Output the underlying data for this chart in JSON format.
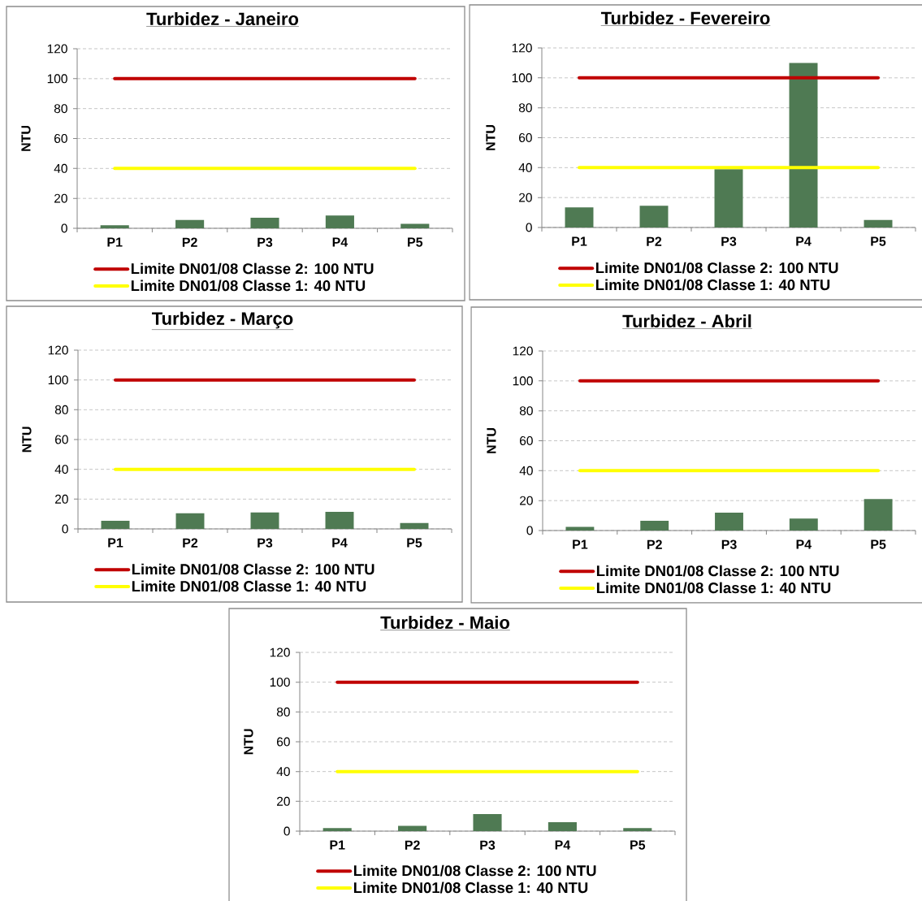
{
  "chart_data": [
    {
      "type": "bar",
      "title": "Turbidez - Janeiro",
      "ylabel": "NTU",
      "categories": [
        "P1",
        "P2",
        "P3",
        "P4",
        "P5"
      ],
      "series": [
        {
          "color": "#4f7a53",
          "values": [
            2,
            5.5,
            7,
            8.5,
            3
          ]
        },
        {
          "type": "line",
          "name": "Limite DN01/08 Classe 2: 100 NTU",
          "color": "#c00000",
          "values": [
            100,
            100,
            100,
            100,
            100
          ]
        },
        {
          "type": "line",
          "name": "Limite DN01/08 Classe 1: 40 NTU",
          "color": "#ffff00",
          "values": [
            40,
            40,
            40,
            40,
            40
          ]
        }
      ],
      "ylim": [
        0,
        120
      ],
      "yticks": [
        0,
        20,
        40,
        60,
        80,
        100,
        120
      ],
      "grid": "y",
      "legend": "bottom"
    },
    {
      "type": "bar",
      "title": "Turbidez - Fevereiro",
      "ylabel": "NTU",
      "categories": [
        "P1",
        "P2",
        "P3",
        "P4",
        "P5"
      ],
      "series": [
        {
          "color": "#4f7a53",
          "values": [
            13.5,
            14.5,
            39,
            110,
            5
          ]
        },
        {
          "type": "line",
          "name": "Limite DN01/08 Classe 2: 100 NTU",
          "color": "#c00000",
          "values": [
            100,
            100,
            100,
            100,
            100
          ]
        },
        {
          "type": "line",
          "name": "Limite DN01/08 Classe 1: 40 NTU",
          "color": "#ffff00",
          "values": [
            40,
            40,
            40,
            40,
            40
          ]
        }
      ],
      "ylim": [
        0,
        120
      ],
      "yticks": [
        0,
        20,
        40,
        60,
        80,
        100,
        120
      ],
      "grid": "y",
      "legend": "bottom"
    },
    {
      "type": "bar",
      "title": "Turbidez - Março",
      "ylabel": "NTU",
      "categories": [
        "P1",
        "P2",
        "P3",
        "P4",
        "P5"
      ],
      "series": [
        {
          "color": "#4f7a53",
          "values": [
            5.5,
            10.5,
            11,
            11.5,
            4
          ]
        },
        {
          "type": "line",
          "name": "Limite DN01/08 Classe 2: 100 NTU",
          "color": "#c00000",
          "values": [
            100,
            100,
            100,
            100,
            100
          ]
        },
        {
          "type": "line",
          "name": "Limite DN01/08 Classe 1: 40 NTU",
          "color": "#ffff00",
          "values": [
            40,
            40,
            40,
            40,
            40
          ]
        }
      ],
      "ylim": [
        0,
        120
      ],
      "yticks": [
        0,
        20,
        40,
        60,
        80,
        100,
        120
      ],
      "grid": "y",
      "legend": "bottom"
    },
    {
      "type": "bar",
      "title": "Turbidez - Abril",
      "ylabel": "NTU",
      "categories": [
        "P1",
        "P2",
        "P3",
        "P4",
        "P5"
      ],
      "series": [
        {
          "color": "#4f7a53",
          "values": [
            2.5,
            6.5,
            12,
            8,
            21
          ]
        },
        {
          "type": "line",
          "name": "Limite DN01/08 Classe 2: 100 NTU",
          "color": "#c00000",
          "values": [
            100,
            100,
            100,
            100,
            100
          ]
        },
        {
          "type": "line",
          "name": "Limite DN01/08 Classe 1: 40 NTU",
          "color": "#ffff00",
          "values": [
            40,
            40,
            40,
            40,
            40
          ]
        }
      ],
      "ylim": [
        0,
        120
      ],
      "yticks": [
        0,
        20,
        40,
        60,
        80,
        100,
        120
      ],
      "grid": "y",
      "legend": "bottom"
    },
    {
      "type": "bar",
      "title": "Turbidez - Maio",
      "ylabel": "NTU",
      "categories": [
        "P1",
        "P2",
        "P3",
        "P4",
        "P5"
      ],
      "series": [
        {
          "color": "#4f7a53",
          "values": [
            2,
            3.5,
            11.5,
            6,
            2
          ]
        },
        {
          "type": "line",
          "name": "Limite DN01/08 Classe 2: 100 NTU",
          "color": "#c00000",
          "values": [
            100,
            100,
            100,
            100,
            100
          ]
        },
        {
          "type": "line",
          "name": "Limite DN01/08 Classe 1: 40 NTU",
          "color": "#ffff00",
          "values": [
            40,
            40,
            40,
            40,
            40
          ]
        }
      ],
      "ylim": [
        0,
        120
      ],
      "yticks": [
        0,
        20,
        40,
        60,
        80,
        100,
        120
      ],
      "grid": "y",
      "legend": "bottom"
    }
  ]
}
